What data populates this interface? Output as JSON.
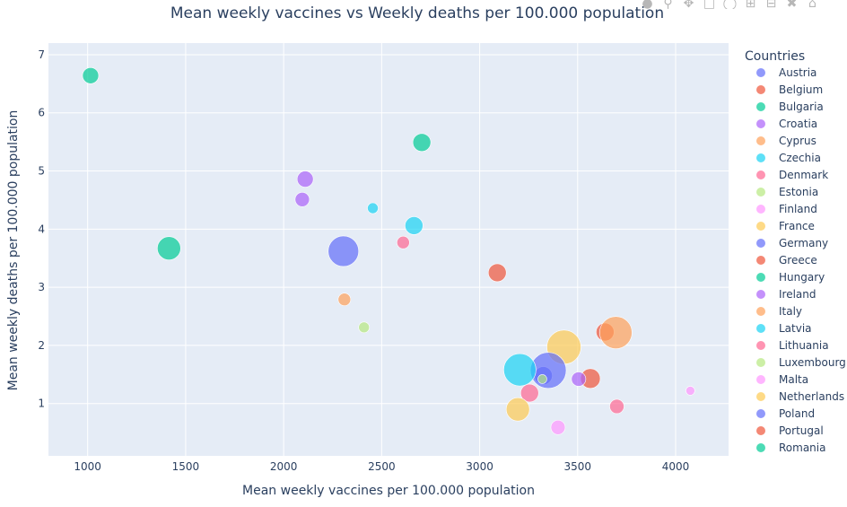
{
  "chart_data": {
    "type": "scatter",
    "title": "Mean weekly vaccines vs Weekly deaths per 100.000 population",
    "xlabel": "Mean weekly vaccines per 100.000 population",
    "ylabel": "Mean weekly deaths per 100.000 population",
    "xlim": [
      800,
      4270
    ],
    "ylim": [
      0.1,
      7.2
    ],
    "xticks": [
      1000,
      1500,
      2000,
      2500,
      3000,
      3500,
      4000
    ],
    "yticks": [
      1,
      2,
      3,
      4,
      5,
      6,
      7
    ],
    "grid": true,
    "legend_title": "Countries",
    "legend_position": "right",
    "series": [
      {
        "name": "Austria",
        "color": "#636efa",
        "points": [
          {
            "x": 3325,
            "y": 1.48,
            "size": 10
          }
        ]
      },
      {
        "name": "Belgium",
        "color": "#ef553b",
        "points": [
          {
            "x": 3565,
            "y": 1.43,
            "size": 11
          }
        ]
      },
      {
        "name": "Bulgaria",
        "color": "#00cc96",
        "points": [
          {
            "x": 1015,
            "y": 6.64,
            "size": 9
          },
          {
            "x": 2705,
            "y": 5.49,
            "size": 10
          },
          {
            "x": 1415,
            "y": 3.67,
            "size": 13
          }
        ]
      },
      {
        "name": "Croatia",
        "color": "#ab63fa",
        "points": [
          {
            "x": 2110,
            "y": 4.86,
            "size": 9
          },
          {
            "x": 2095,
            "y": 4.51,
            "size": 8
          }
        ]
      },
      {
        "name": "Cyprus",
        "color": "#ffa15a",
        "points": [
          {
            "x": 2310,
            "y": 2.79,
            "size": 7
          }
        ]
      },
      {
        "name": "Czechia",
        "color": "#19d3f3",
        "points": [
          {
            "x": 2455,
            "y": 4.36,
            "size": 6
          },
          {
            "x": 2665,
            "y": 4.06,
            "size": 10
          }
        ]
      },
      {
        "name": "Denmark",
        "color": "#ff6692",
        "points": [
          {
            "x": 2610,
            "y": 3.77,
            "size": 7
          }
        ]
      },
      {
        "name": "Estonia",
        "color": "#b6e880",
        "points": [
          {
            "x": 2410,
            "y": 2.31,
            "size": 6
          }
        ]
      },
      {
        "name": "Finland",
        "color": "#ff97ff",
        "points": [
          {
            "x": 4075,
            "y": 1.22,
            "size": 5
          },
          {
            "x": 3400,
            "y": 0.59,
            "size": 8
          }
        ]
      },
      {
        "name": "France",
        "color": "#fecb52",
        "points": [
          {
            "x": 3430,
            "y": 1.97,
            "size": 19
          }
        ]
      },
      {
        "name": "Germany",
        "color": "#636efa",
        "points": [
          {
            "x": 3350,
            "y": 1.57,
            "size": 20
          },
          {
            "x": 2305,
            "y": 3.62,
            "size": 17
          }
        ]
      },
      {
        "name": "Greece",
        "color": "#ef553b",
        "points": [
          {
            "x": 3640,
            "y": 2.23,
            "size": 10
          },
          {
            "x": 3090,
            "y": 3.25,
            "size": 10
          }
        ]
      },
      {
        "name": "Hungary",
        "color": "#00cc96",
        "points": []
      },
      {
        "name": "Ireland",
        "color": "#ab63fa",
        "points": [
          {
            "x": 3505,
            "y": 1.42,
            "size": 8
          }
        ]
      },
      {
        "name": "Italy",
        "color": "#ffa15a",
        "points": [
          {
            "x": 3695,
            "y": 2.22,
            "size": 18
          }
        ]
      },
      {
        "name": "Latvia",
        "color": "#19d3f3",
        "points": [
          {
            "x": 3205,
            "y": 1.58,
            "size": 18
          }
        ]
      },
      {
        "name": "Lithuania",
        "color": "#ff6692",
        "points": [
          {
            "x": 3255,
            "y": 1.18,
            "size": 10
          },
          {
            "x": 3700,
            "y": 0.95,
            "size": 8
          }
        ]
      },
      {
        "name": "Luxembourg",
        "color": "#b6e880",
        "points": [
          {
            "x": 3320,
            "y": 1.42,
            "size": 5
          }
        ]
      },
      {
        "name": "Malta",
        "color": "#ff97ff",
        "points": []
      },
      {
        "name": "Netherlands",
        "color": "#fecb52",
        "points": [
          {
            "x": 3195,
            "y": 0.9,
            "size": 13
          }
        ]
      },
      {
        "name": "Poland",
        "color": "#636efa",
        "points": []
      },
      {
        "name": "Portugal",
        "color": "#ef553b",
        "points": []
      },
      {
        "name": "Romania",
        "color": "#00cc96",
        "points": []
      }
    ]
  }
}
